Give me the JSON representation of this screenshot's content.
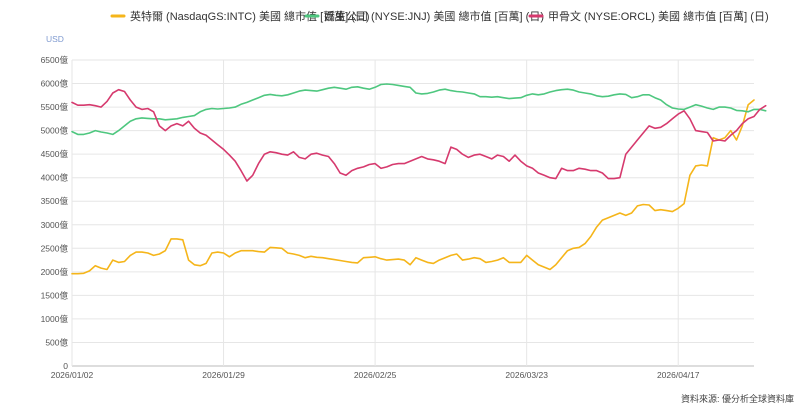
{
  "chart_data": {
    "type": "line",
    "unit_label": "USD",
    "source": "資料來源: 優分析全球資料庫",
    "ylim": [
      0,
      6500
    ],
    "y_ticks": [
      0,
      500,
      1000,
      1500,
      2000,
      2500,
      3000,
      3500,
      4000,
      4500,
      5000,
      5500,
      6000,
      6500
    ],
    "y_tick_labels": [
      "0",
      "500億",
      "1000億",
      "1500億",
      "2000億",
      "2500億",
      "3000億",
      "3500億",
      "4000億",
      "4500億",
      "5000億",
      "5500億",
      "6000億",
      "6500億"
    ],
    "x_tick_labels": [
      "2026/01/02",
      "2026/01/29",
      "2026/02/25",
      "2026/03/23",
      "2026/04/17"
    ],
    "x_tick_index": [
      0,
      26,
      52,
      78,
      104
    ],
    "grid": true,
    "legend_position": "top",
    "series": [
      {
        "name": "英特爾 (NasdaqGS:INTC) 美國 總市值 [百萬] (日)",
        "color": "#f5b51a",
        "values": [
          1960,
          1960,
          1970,
          2020,
          2130,
          2080,
          2050,
          2250,
          2200,
          2220,
          2350,
          2420,
          2420,
          2400,
          2350,
          2380,
          2450,
          2700,
          2700,
          2680,
          2250,
          2150,
          2130,
          2180,
          2400,
          2420,
          2400,
          2320,
          2400,
          2450,
          2450,
          2450,
          2430,
          2420,
          2520,
          2510,
          2500,
          2400,
          2380,
          2350,
          2300,
          2330,
          2310,
          2300,
          2280,
          2260,
          2240,
          2220,
          2200,
          2190,
          2300,
          2310,
          2320,
          2280,
          2250,
          2260,
          2270,
          2250,
          2150,
          2300,
          2250,
          2200,
          2180,
          2250,
          2300,
          2350,
          2380,
          2250,
          2270,
          2300,
          2280,
          2200,
          2220,
          2250,
          2300,
          2200,
          2200,
          2200,
          2350,
          2250,
          2150,
          2100,
          2050,
          2150,
          2300,
          2450,
          2500,
          2520,
          2600,
          2750,
          2950,
          3100,
          3150,
          3200,
          3250,
          3200,
          3250,
          3400,
          3430,
          3420,
          3300,
          3320,
          3300,
          3280,
          3350,
          3450,
          4050,
          4250,
          4270,
          4250,
          4850,
          4800,
          4850,
          5000,
          4800,
          5100,
          5550,
          5650
        ]
      },
      {
        "name": "嬌生公司 (NYSE:JNJ) 美國 總市值 [百萬] (日)",
        "color": "#4ec77f",
        "values": [
          4980,
          4920,
          4920,
          4950,
          5000,
          4970,
          4950,
          4920,
          5000,
          5100,
          5200,
          5250,
          5270,
          5260,
          5250,
          5250,
          5230,
          5240,
          5250,
          5280,
          5300,
          5320,
          5400,
          5450,
          5470,
          5460,
          5470,
          5480,
          5500,
          5560,
          5600,
          5650,
          5700,
          5750,
          5770,
          5750,
          5740,
          5760,
          5800,
          5840,
          5860,
          5850,
          5840,
          5870,
          5900,
          5920,
          5900,
          5880,
          5920,
          5930,
          5900,
          5880,
          5920,
          5980,
          5990,
          5980,
          5960,
          5940,
          5920,
          5800,
          5780,
          5790,
          5820,
          5860,
          5880,
          5850,
          5830,
          5820,
          5800,
          5780,
          5720,
          5720,
          5710,
          5720,
          5700,
          5680,
          5690,
          5700,
          5750,
          5780,
          5760,
          5780,
          5820,
          5850,
          5870,
          5880,
          5860,
          5820,
          5800,
          5780,
          5740,
          5720,
          5730,
          5760,
          5780,
          5770,
          5700,
          5720,
          5760,
          5760,
          5700,
          5650,
          5550,
          5480,
          5460,
          5450,
          5500,
          5550,
          5520,
          5480,
          5450,
          5500,
          5500,
          5480,
          5430,
          5420,
          5400,
          5450,
          5450,
          5420
        ]
      },
      {
        "name": "甲骨文 (NYSE:ORCL) 美國 總市值 [百萬] (日)",
        "color": "#d63a6e",
        "values": [
          5600,
          5540,
          5540,
          5550,
          5530,
          5500,
          5620,
          5800,
          5870,
          5830,
          5650,
          5500,
          5450,
          5470,
          5400,
          5100,
          5000,
          5100,
          5150,
          5100,
          5200,
          5050,
          4950,
          4900,
          4800,
          4700,
          4600,
          4480,
          4350,
          4150,
          3930,
          4050,
          4300,
          4500,
          4550,
          4530,
          4500,
          4480,
          4550,
          4430,
          4400,
          4500,
          4520,
          4480,
          4450,
          4300,
          4100,
          4050,
          4150,
          4200,
          4230,
          4280,
          4300,
          4200,
          4230,
          4280,
          4300,
          4300,
          4350,
          4400,
          4450,
          4400,
          4380,
          4350,
          4300,
          4650,
          4600,
          4500,
          4430,
          4480,
          4500,
          4450,
          4400,
          4480,
          4450,
          4350,
          4480,
          4350,
          4250,
          4200,
          4100,
          4050,
          4000,
          3980,
          4200,
          4150,
          4150,
          4200,
          4180,
          4150,
          4150,
          4100,
          3980,
          3980,
          4000,
          4500,
          4650,
          4800,
          4950,
          5100,
          5050,
          5070,
          5150,
          5250,
          5350,
          5420,
          5250,
          5000,
          4980,
          4960,
          4780,
          4800,
          4780,
          4900,
          5000,
          5150,
          5250,
          5300,
          5450,
          5530
        ]
      }
    ]
  }
}
